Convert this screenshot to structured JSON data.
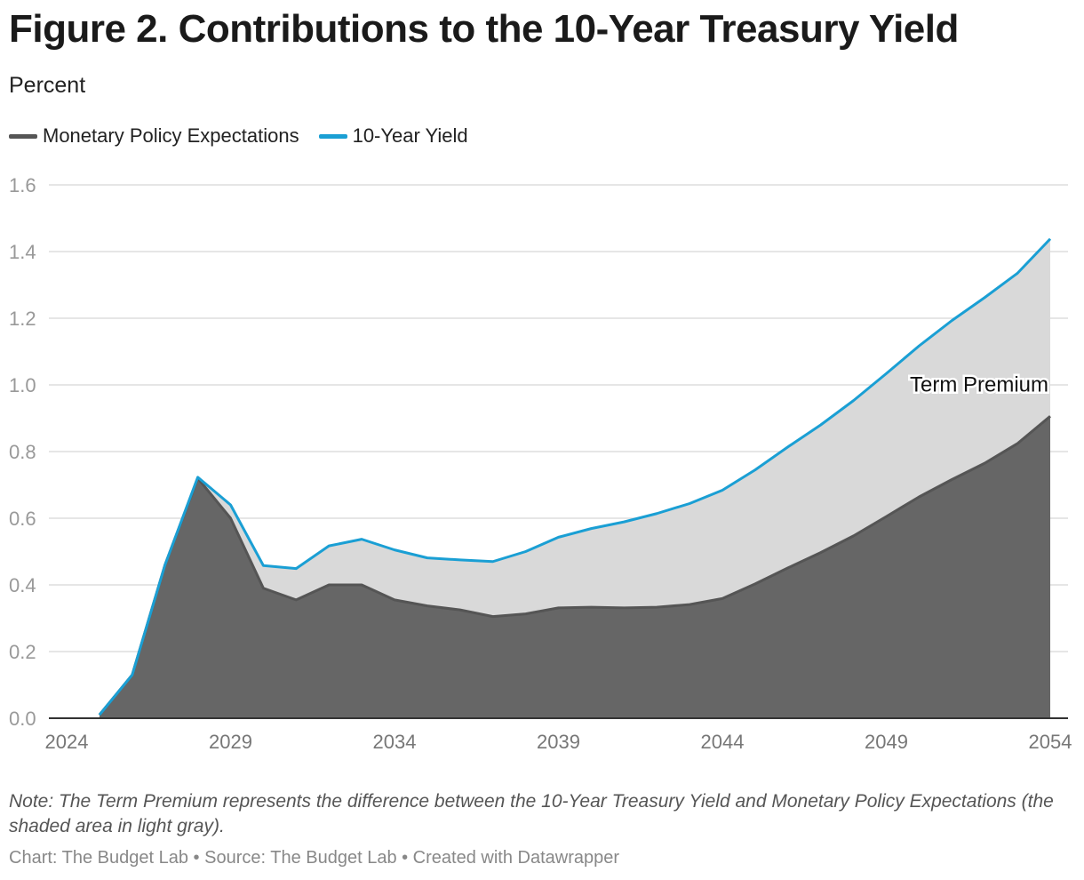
{
  "chart_data": {
    "type": "area",
    "title": "Figure 2. Contributions to the 10-Year Treasury Yield",
    "subtitle": "Percent",
    "x": [
      2025,
      2026,
      2027,
      2028,
      2029,
      2030,
      2031,
      2032,
      2033,
      2034,
      2035,
      2036,
      2037,
      2038,
      2039,
      2040,
      2041,
      2042,
      2043,
      2044,
      2045,
      2046,
      2047,
      2048,
      2049,
      2050,
      2051,
      2052,
      2053,
      2054
    ],
    "series": [
      {
        "name": "Monetary Policy Expectations",
        "color": "#555555",
        "fill": "#666666",
        "values": [
          0.01,
          0.13,
          0.46,
          0.72,
          0.6,
          0.39,
          0.355,
          0.4,
          0.4,
          0.355,
          0.337,
          0.325,
          0.305,
          0.313,
          0.331,
          0.333,
          0.331,
          0.333,
          0.341,
          0.359,
          0.403,
          0.451,
          0.497,
          0.547,
          0.605,
          0.664,
          0.716,
          0.765,
          0.824,
          0.906
        ]
      },
      {
        "name": "10-Year Yield",
        "color": "#1a9fd4",
        "values": [
          0.01,
          0.13,
          0.46,
          0.723,
          0.64,
          0.458,
          0.449,
          0.517,
          0.537,
          0.505,
          0.481,
          0.475,
          0.47,
          0.5,
          0.543,
          0.569,
          0.589,
          0.614,
          0.644,
          0.684,
          0.745,
          0.814,
          0.88,
          0.953,
          1.034,
          1.117,
          1.193,
          1.262,
          1.335,
          1.438
        ]
      }
    ],
    "xticks": [
      "2024",
      "2029",
      "2034",
      "2039",
      "2044",
      "2049",
      "2054"
    ],
    "xtick_values": [
      2024,
      2029,
      2034,
      2039,
      2044,
      2049,
      2054
    ],
    "yticks": [
      "0.0",
      "0.2",
      "0.4",
      "0.6",
      "0.8",
      "1.0",
      "1.2",
      "1.4",
      "1.6"
    ],
    "ytick_values": [
      0,
      0.2,
      0.4,
      0.6,
      0.8,
      1.0,
      1.2,
      1.4,
      1.6
    ],
    "xlim": [
      2024,
      2054
    ],
    "ylim": [
      0,
      1.6
    ],
    "grid": true,
    "legend_position": "top-left",
    "term_premium_fill": "#d9d9d9",
    "annotation": "Term Premium",
    "note": "Note: The Term Premium represents the difference between the 10-Year Treasury Yield and Monetary Policy Expectations (the shaded area in light gray).",
    "credit": "Chart: The Budget Lab • Source: The Budget Lab • Created with Datawrapper"
  }
}
